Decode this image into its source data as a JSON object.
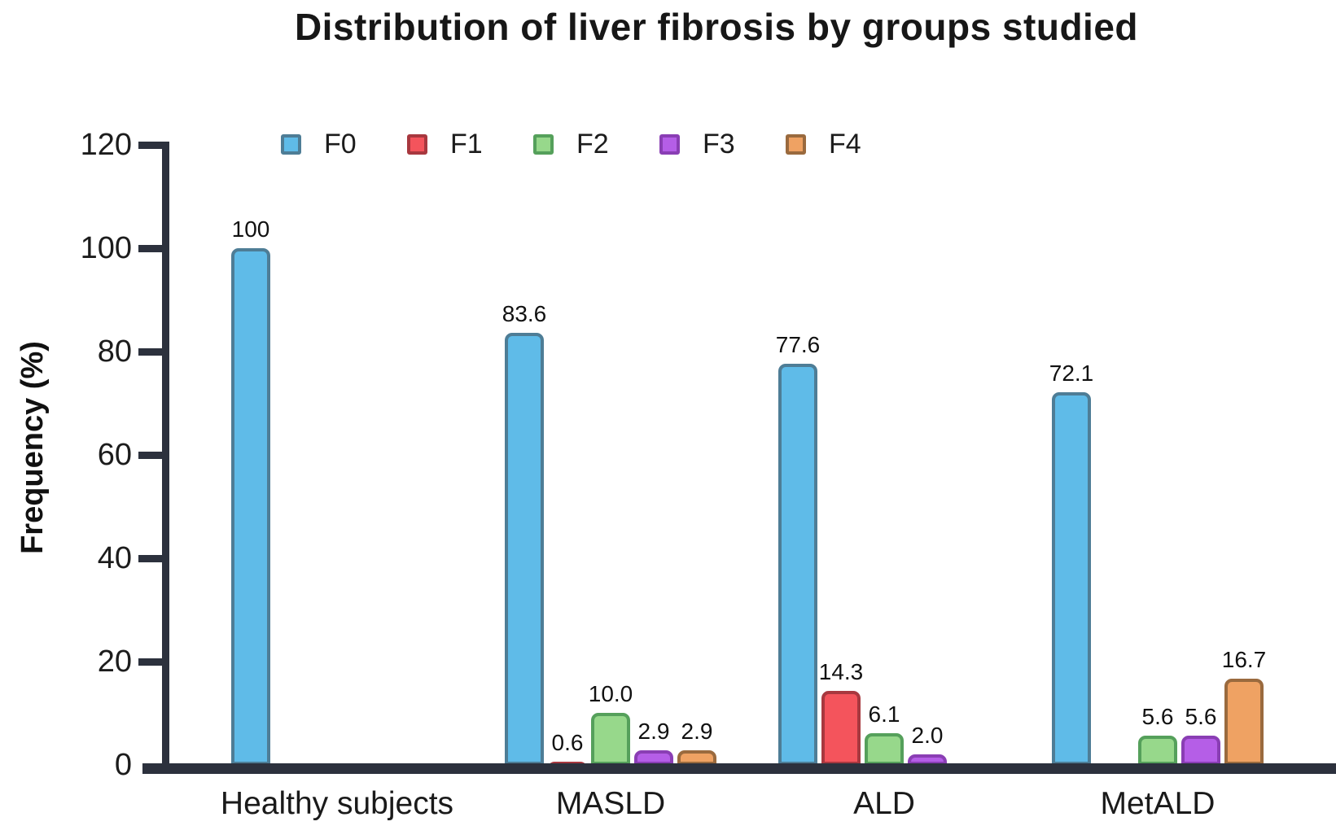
{
  "chart_data": {
    "type": "bar",
    "title": "Distribution of liver fibrosis by groups studied",
    "xlabel": "",
    "ylabel": "Frequency (%)",
    "ylim": [
      0,
      120
    ],
    "yticks": [
      0,
      20,
      40,
      60,
      80,
      100,
      120
    ],
    "grid": false,
    "legend_position": "top",
    "axis_color": "#2c313d",
    "categories": [
      "Healthy subjects",
      "MASLD",
      "ALD",
      "MetALD"
    ],
    "series": [
      {
        "name": "F0",
        "color": "#5fbbe8",
        "border": "#4e7d96",
        "values": [
          100,
          83.6,
          77.6,
          72.1
        ],
        "labels": [
          "100",
          "83.6",
          "77.6",
          "72.1"
        ]
      },
      {
        "name": "F1",
        "color": "#f4545c",
        "border": "#a8383f",
        "values": [
          null,
          0.6,
          14.3,
          null
        ],
        "labels": [
          null,
          "0.6",
          "14.3",
          null
        ]
      },
      {
        "name": "F2",
        "color": "#97d88b",
        "border": "#55a05b",
        "values": [
          null,
          10,
          6.1,
          5.6
        ],
        "labels": [
          null,
          "10.0",
          "6.1",
          "5.6"
        ]
      },
      {
        "name": "F3",
        "color": "#b55ee7",
        "border": "#8a3eb4",
        "values": [
          null,
          2.9,
          2,
          5.6
        ],
        "labels": [
          null,
          "2.9",
          "2.0",
          "5.6"
        ]
      },
      {
        "name": "F4",
        "color": "#efa263",
        "border": "#9a6a3e",
        "values": [
          null,
          2.9,
          null,
          16.7
        ],
        "labels": [
          null,
          "2.9",
          null,
          "16.7"
        ]
      }
    ]
  }
}
